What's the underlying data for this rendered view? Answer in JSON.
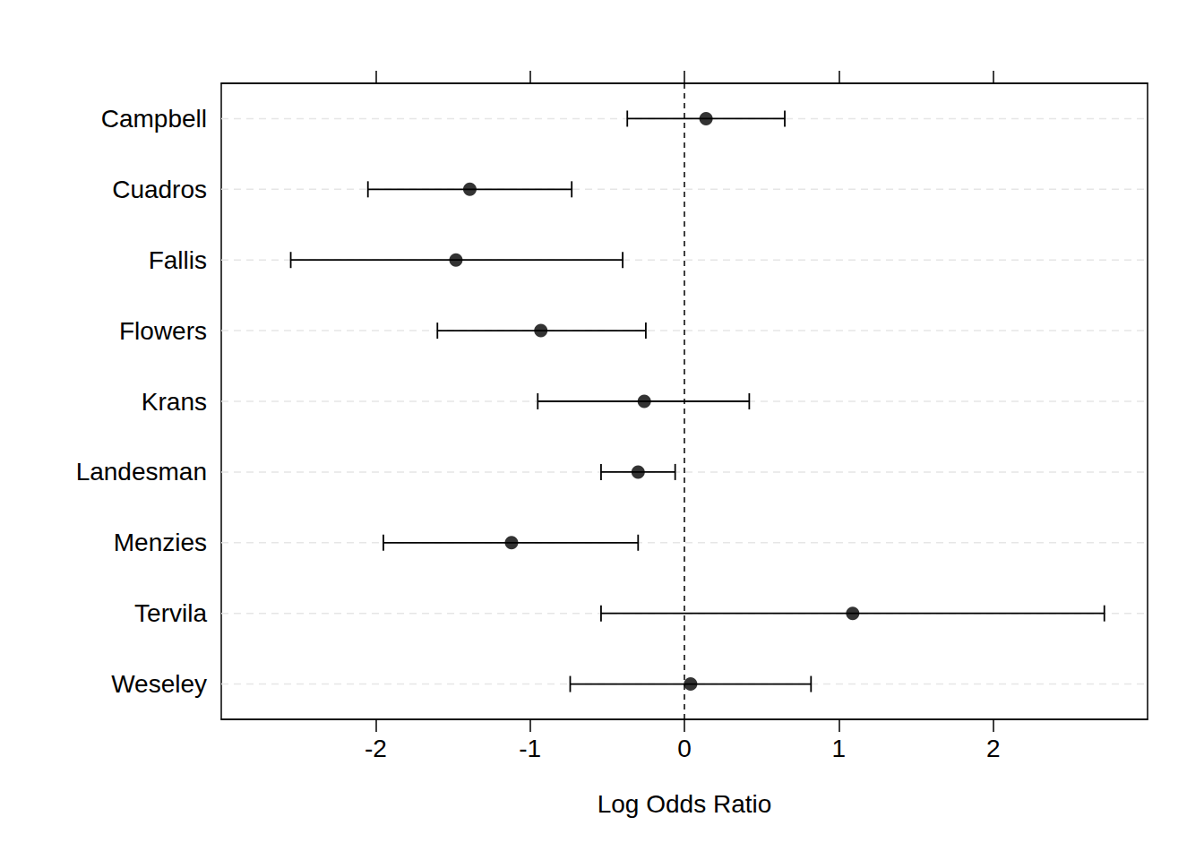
{
  "chart_data": {
    "type": "forest",
    "x_label": "Log Odds Ratio",
    "categories": [
      "Campbell",
      "Cuadros",
      "Fallis",
      "Flowers",
      "Krans",
      "Landesman",
      "Menzies",
      "Tervila",
      "Weseley"
    ],
    "values": [
      0.14,
      -1.39,
      -1.48,
      -0.93,
      -0.26,
      -0.3,
      -1.12,
      1.09,
      0.04
    ],
    "ci_lower": [
      -0.37,
      -2.05,
      -2.55,
      -1.6,
      -0.95,
      -0.54,
      -1.95,
      -0.54,
      -0.74
    ],
    "ci_upper": [
      0.65,
      -0.73,
      -0.4,
      -0.25,
      0.42,
      -0.06,
      -0.3,
      2.72,
      0.82
    ],
    "xlim": [
      -3,
      3
    ],
    "xticks": [
      -2,
      -1,
      0,
      1,
      2
    ],
    "reference_line": 0,
    "grid": true,
    "color": "#000000"
  }
}
